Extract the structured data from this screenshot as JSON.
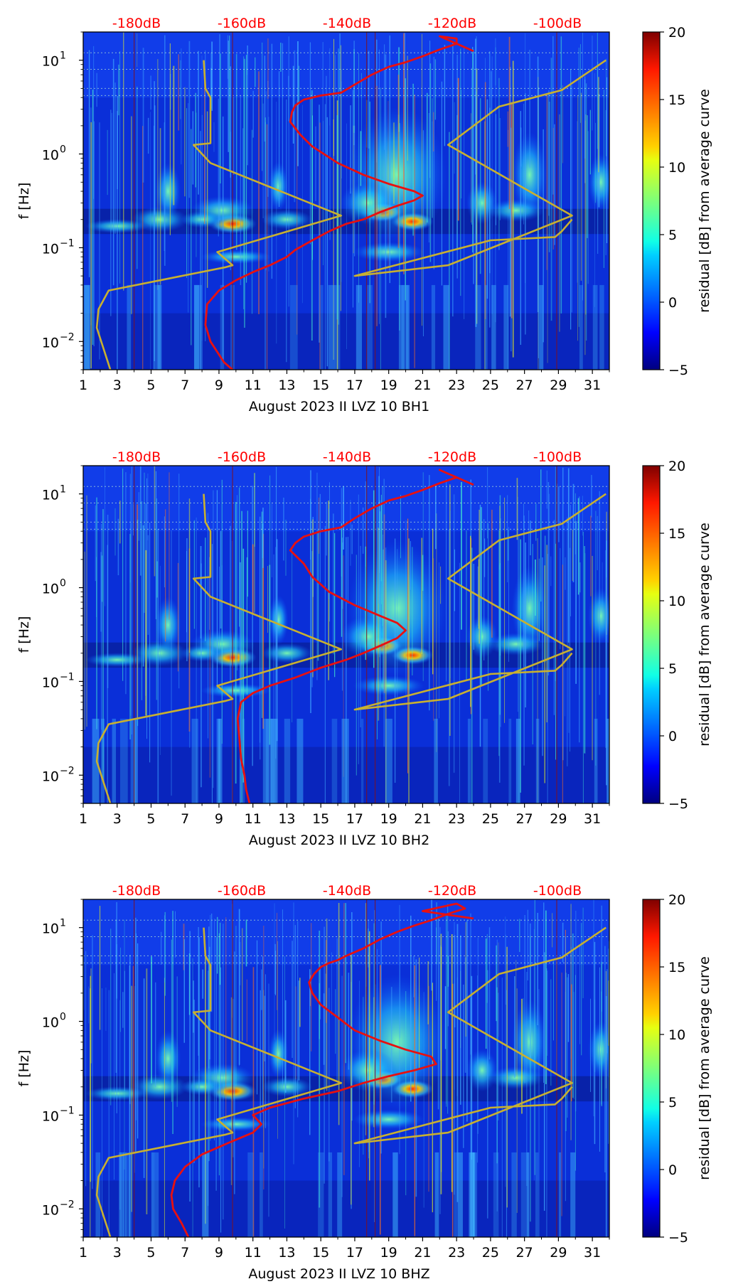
{
  "colors": {
    "spectrogram_background": "#0a2fd8",
    "median_curve": "#e81010",
    "noise_model_curve": "#c8b030",
    "db_label": "#ff0000"
  },
  "colorbar": {
    "label": "residual [dB] from average curve",
    "range": [
      -5,
      20
    ],
    "ticks": [
      "20",
      "15",
      "10",
      "5",
      "0",
      "−5"
    ],
    "colormap": "jet"
  },
  "chart_data": [
    {
      "type": "heatmap",
      "xlabel": "August 2023 II LVZ 10 BH1",
      "ylabel": "f [Hz]",
      "x_ticks": [
        "1",
        "3",
        "5",
        "7",
        "9",
        "11",
        "13",
        "15",
        "17",
        "19",
        "21",
        "23",
        "25",
        "27",
        "29",
        "31"
      ],
      "x_range": [
        1,
        32
      ],
      "y_scale": "log",
      "y_range": [
        0.005,
        20
      ],
      "y_ticks": [
        {
          "base": "10",
          "exp": "1"
        },
        {
          "base": "10",
          "exp": "0"
        },
        {
          "base": "10",
          "exp": "−1"
        },
        {
          "base": "10",
          "exp": "−2"
        }
      ],
      "top_ticks": [
        "-180dB",
        "-160dB",
        "-140dB",
        "-120dB",
        "-100dB"
      ],
      "series": [
        {
          "x": [
            8.1,
            8.2,
            8.5,
            8.5,
            7.5,
            8.5,
            16.2,
            8.9,
            9.8,
            9.4,
            2.5,
            1.9,
            1.8,
            2.6
          ],
          "y": [
            10,
            5,
            4,
            1.3,
            1.25,
            0.8,
            0.22,
            0.09,
            0.065,
            0.062,
            0.035,
            0.022,
            0.014,
            0.005
          ]
        },
        {
          "x": [
            29.8,
            29.2,
            28.8,
            25,
            17,
            22.5,
            29.8,
            22.5,
            25.5,
            29.2,
            31.8
          ],
          "y": [
            0.2,
            0.15,
            0.13,
            0.12,
            0.05,
            0.065,
            0.22,
            1.25,
            3.2,
            4.8,
            10
          ]
        },
        {
          "x": [
            9.8,
            9.3,
            8.5,
            8.2,
            8.3,
            9,
            10,
            11,
            12,
            13,
            13.5,
            14.5,
            15.5,
            16.5,
            17.5,
            18.5,
            19.5,
            20.5,
            21,
            20.5,
            19,
            17.5,
            16,
            14.5,
            13.8,
            13.2,
            13.3,
            13.5,
            14,
            15,
            16.2,
            17,
            18,
            19,
            20,
            21,
            22,
            23,
            23,
            22,
            24
          ],
          "y": [
            0.005,
            0.006,
            0.01,
            0.015,
            0.025,
            0.035,
            0.045,
            0.055,
            0.065,
            0.08,
            0.095,
            0.12,
            0.15,
            0.18,
            0.2,
            0.24,
            0.28,
            0.32,
            0.36,
            0.4,
            0.48,
            0.6,
            0.8,
            1.2,
            1.6,
            2.2,
            2.8,
            3.3,
            3.8,
            4.2,
            4.5,
            5.5,
            7,
            8.5,
            9.5,
            11,
            13,
            15,
            17,
            18,
            12.5
          ]
        }
      ]
    },
    {
      "type": "heatmap",
      "xlabel": "August 2023 II LVZ 10 BH2",
      "ylabel": "f [Hz]",
      "x_ticks": [
        "1",
        "3",
        "5",
        "7",
        "9",
        "11",
        "13",
        "15",
        "17",
        "19",
        "21",
        "23",
        "25",
        "27",
        "29",
        "31"
      ],
      "x_range": [
        1,
        32
      ],
      "y_scale": "log",
      "y_range": [
        0.005,
        20
      ],
      "y_ticks": [
        {
          "base": "10",
          "exp": "1"
        },
        {
          "base": "10",
          "exp": "0"
        },
        {
          "base": "10",
          "exp": "−1"
        },
        {
          "base": "10",
          "exp": "−2"
        }
      ],
      "top_ticks": [
        "-180dB",
        "-160dB",
        "-140dB",
        "-120dB",
        "-100dB"
      ],
      "series": [
        {
          "x": [
            8.1,
            8.2,
            8.5,
            8.5,
            7.5,
            8.5,
            16.2,
            8.9,
            9.8,
            9.4,
            2.5,
            1.9,
            1.8,
            2.6
          ],
          "y": [
            10,
            5,
            4,
            1.3,
            1.25,
            0.8,
            0.22,
            0.09,
            0.065,
            0.062,
            0.035,
            0.022,
            0.014,
            0.005
          ]
        },
        {
          "x": [
            29.8,
            29.2,
            28.8,
            25,
            17,
            22.5,
            29.8,
            22.5,
            25.5,
            29.2,
            31.8
          ],
          "y": [
            0.2,
            0.15,
            0.13,
            0.12,
            0.05,
            0.065,
            0.22,
            1.25,
            3.2,
            4.8,
            10
          ]
        },
        {
          "x": [
            10.8,
            10.6,
            10.5,
            10.3,
            10.2,
            10.1,
            10.3,
            11,
            12,
            13.5,
            15,
            16.5,
            17.5,
            18.5,
            19.5,
            20,
            19.5,
            18.5,
            17,
            15.5,
            14.5,
            14,
            13.2,
            13.5,
            14,
            15,
            16.2,
            17,
            18,
            19,
            20,
            21,
            22,
            23,
            22,
            24
          ],
          "y": [
            0.005,
            0.007,
            0.01,
            0.015,
            0.025,
            0.04,
            0.06,
            0.075,
            0.09,
            0.11,
            0.14,
            0.17,
            0.2,
            0.24,
            0.29,
            0.35,
            0.42,
            0.5,
            0.65,
            0.9,
            1.3,
            1.8,
            2.5,
            3,
            3.5,
            4,
            4.4,
            5.5,
            7,
            8.5,
            9.5,
            11,
            13,
            15,
            18,
            12.5
          ]
        }
      ]
    },
    {
      "type": "heatmap",
      "xlabel": "August 2023 II LVZ 10 BHZ",
      "ylabel": "f [Hz]",
      "x_ticks": [
        "1",
        "3",
        "5",
        "7",
        "9",
        "11",
        "13",
        "15",
        "17",
        "19",
        "21",
        "23",
        "25",
        "27",
        "29",
        "31"
      ],
      "x_range": [
        1,
        32
      ],
      "y_scale": "log",
      "y_range": [
        0.005,
        20
      ],
      "y_ticks": [
        {
          "base": "10",
          "exp": "1"
        },
        {
          "base": "10",
          "exp": "0"
        },
        {
          "base": "10",
          "exp": "−1"
        },
        {
          "base": "10",
          "exp": "−2"
        }
      ],
      "top_ticks": [
        "-180dB",
        "-160dB",
        "-140dB",
        "-120dB",
        "-100dB"
      ],
      "series": [
        {
          "x": [
            8.1,
            8.2,
            8.5,
            8.5,
            7.5,
            8.5,
            16.2,
            8.9,
            9.8,
            9.4,
            2.5,
            1.9,
            1.8,
            2.6
          ],
          "y": [
            10,
            5,
            4,
            1.3,
            1.25,
            0.8,
            0.22,
            0.09,
            0.065,
            0.062,
            0.035,
            0.022,
            0.014,
            0.005
          ]
        },
        {
          "x": [
            29.8,
            29.2,
            28.8,
            25,
            17,
            22.5,
            29.8,
            22.5,
            25.5,
            29.2,
            31.8
          ],
          "y": [
            0.2,
            0.15,
            0.13,
            0.12,
            0.05,
            0.065,
            0.22,
            1.25,
            3.2,
            4.8,
            10
          ]
        },
        {
          "x": [
            7.2,
            6.8,
            6.3,
            6.2,
            6.4,
            7,
            8,
            9.5,
            11,
            11.5,
            11,
            12,
            14,
            16,
            17.5,
            19,
            20.5,
            21.8,
            21.5,
            20,
            18.5,
            17,
            16,
            15,
            14.5,
            14.3,
            14.6,
            15,
            15.5,
            16,
            16.5,
            17.5,
            18.5,
            19.5,
            20.5,
            21.5,
            22.5,
            23.5,
            23,
            21,
            24
          ],
          "y": [
            0.005,
            0.007,
            0.01,
            0.014,
            0.02,
            0.028,
            0.038,
            0.05,
            0.065,
            0.08,
            0.1,
            0.12,
            0.15,
            0.18,
            0.22,
            0.26,
            0.3,
            0.35,
            0.42,
            0.5,
            0.62,
            0.8,
            1.1,
            1.5,
            2,
            2.6,
            3.2,
            3.8,
            4.2,
            4.5,
            5,
            6,
            7.5,
            9,
            10.5,
            12,
            14,
            16,
            18,
            15,
            12.5
          ]
        }
      ]
    }
  ]
}
